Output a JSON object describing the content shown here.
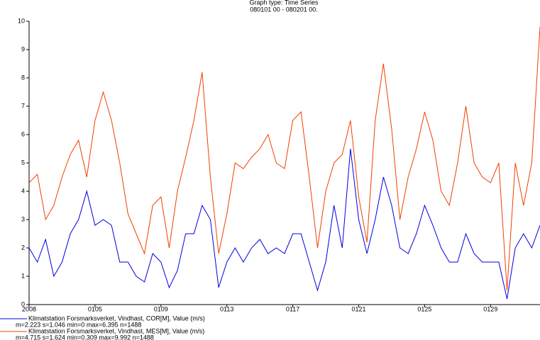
{
  "chart_data": {
    "type": "line",
    "title": "Graph type: Time Series",
    "subtitle": "080101 00 - 080201 00.",
    "x": [
      0,
      0.5,
      1,
      1.5,
      2,
      2.5,
      3,
      3.5,
      4,
      4.5,
      5,
      5.5,
      6,
      6.5,
      7,
      7.5,
      8,
      8.5,
      9,
      9.5,
      10,
      10.5,
      11,
      11.5,
      12,
      12.5,
      13,
      13.5,
      14,
      14.5,
      15,
      15.5,
      16,
      16.5,
      17,
      17.5,
      18,
      18.5,
      19,
      19.5,
      20,
      20.5,
      21,
      21.5,
      22,
      22.5,
      23,
      23.5,
      24,
      24.5,
      25,
      25.5,
      26,
      26.5,
      27,
      27.5,
      28,
      28.5,
      29,
      29.5,
      30,
      30.5,
      31
    ],
    "series": [
      {
        "name": "Klimatstation Forsmarksverket, Vindhast, COR[M], Value (m/s)",
        "stats": "m=2.223 s=1.046 min=0 max=6.395 n=1488",
        "color": "#0000e0",
        "values": [
          2.0,
          1.5,
          2.3,
          1.0,
          1.5,
          2.5,
          3.0,
          4.0,
          2.8,
          3.0,
          2.8,
          1.5,
          1.5,
          1.0,
          0.8,
          1.8,
          1.5,
          0.6,
          1.2,
          2.5,
          2.5,
          3.5,
          3.0,
          0.6,
          1.5,
          2.0,
          1.5,
          2.0,
          2.3,
          1.8,
          2.0,
          1.8,
          2.5,
          2.5,
          1.5,
          0.5,
          1.5,
          3.5,
          2.0,
          5.5,
          3.0,
          1.8,
          3.0,
          4.5,
          3.5,
          2.0,
          1.8,
          2.5,
          3.5,
          2.8,
          2.0,
          1.5,
          1.5,
          2.5,
          1.8,
          1.5,
          1.5,
          1.5,
          0.2,
          2.0,
          2.5,
          2.0,
          2.8
        ]
      },
      {
        "name": "Klimatstation Forsmarksverket, Vindhast, MES[M], Value (m/s)",
        "stats": "m=4.715 s=1.624 min=0.309 max=9.992 n=1488",
        "color": "#f04000",
        "values": [
          4.3,
          4.6,
          3.0,
          3.5,
          4.5,
          5.3,
          5.8,
          4.5,
          6.5,
          7.5,
          6.5,
          5.0,
          3.2,
          2.5,
          1.8,
          3.5,
          3.8,
          2.0,
          4.0,
          5.2,
          6.5,
          8.2,
          4.5,
          1.8,
          3.2,
          5.0,
          4.8,
          5.2,
          5.5,
          6.0,
          5.0,
          4.8,
          6.5,
          6.8,
          4.5,
          2.0,
          4.0,
          5.0,
          5.3,
          6.5,
          3.8,
          2.2,
          6.5,
          8.5,
          6.2,
          3.0,
          4.5,
          5.5,
          6.8,
          5.8,
          4.0,
          3.5,
          5.0,
          7.0,
          5.0,
          4.5,
          4.3,
          5.0,
          0.5,
          5.0,
          3.5,
          5.0,
          9.8
        ]
      }
    ],
    "xlim": [
      0,
      31
    ],
    "xticks": [
      {
        "value": 0,
        "label": "2008"
      },
      {
        "value": 4,
        "label": "0105"
      },
      {
        "value": 8,
        "label": "0109"
      },
      {
        "value": 12,
        "label": "0113"
      },
      {
        "value": 16,
        "label": "0117"
      },
      {
        "value": 20,
        "label": "0121"
      },
      {
        "value": 24,
        "label": "0125"
      },
      {
        "value": 28,
        "label": "0129"
      }
    ],
    "ylim": [
      0,
      10
    ],
    "yticks": [
      0,
      1,
      2,
      3,
      4,
      5,
      6,
      7,
      8,
      9,
      10
    ]
  }
}
